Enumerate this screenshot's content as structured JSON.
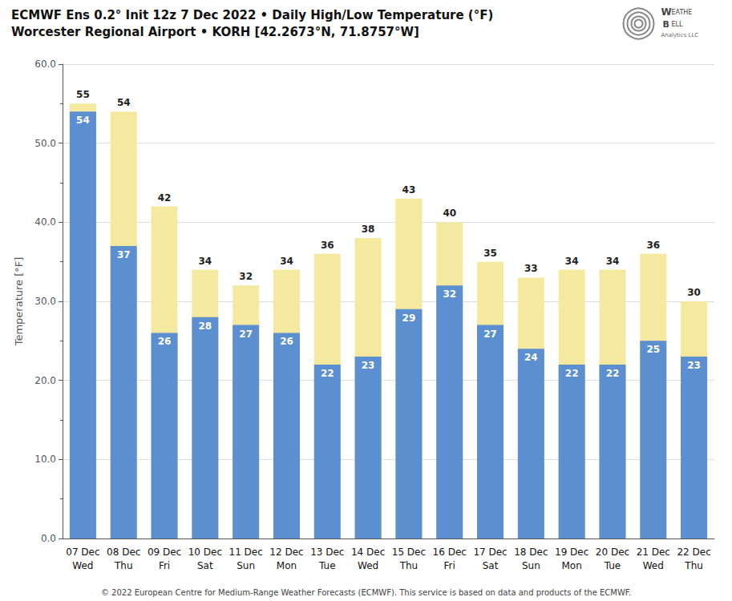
{
  "chart_data": {
    "type": "bar",
    "title": "ECMWF Ens 0.2° Init 12z 7 Dec 2022 • Daily High/Low Temperature (°F)",
    "subtitle": "Worcester Regional Airport • KORH [42.2673°N, 71.8757°W]",
    "categories": [
      "07 Dec\nWed",
      "08 Dec\nThu",
      "09 Dec\nFri",
      "10 Dec\nSat",
      "11 Dec\nSun",
      "12 Dec\nMon",
      "13 Dec\nTue",
      "14 Dec\nWed",
      "15 Dec\nThu",
      "16 Dec\nFri",
      "17 Dec\nSat",
      "18 Dec\nSun",
      "19 Dec\nMon",
      "20 Dec\nTue",
      "21 Dec\nWed",
      "22 Dec\nThu"
    ],
    "series": [
      {
        "color": "#5b8fcf",
        "values": [
          54,
          37,
          26,
          28,
          27,
          26,
          22,
          23,
          29,
          32,
          27,
          24,
          22,
          22,
          25,
          23
        ]
      },
      {
        "color": "#f5e9a0",
        "values": [
          55,
          54,
          42,
          34,
          32,
          34,
          36,
          38,
          43,
          40,
          35,
          33,
          34,
          34,
          36,
          30
        ]
      }
    ],
    "ylabel": "Temperature [°F]",
    "ylim": [
      0,
      60
    ],
    "yticks": [
      {
        "value": 0,
        "label": "0.0"
      },
      {
        "value": 10,
        "label": "10.0"
      },
      {
        "value": 20,
        "label": "20.0"
      },
      {
        "value": 30,
        "label": "30.0"
      },
      {
        "value": 40,
        "label": "40.0"
      },
      {
        "value": 50,
        "label": "50.0"
      },
      {
        "value": 60,
        "label": "60.0"
      }
    ],
    "grid": true,
    "data_labels": true,
    "annotations": [
      "© 2022 European Centre for Medium-Range Weather Forecasts (ECMWF). This service is based on data and products of the ECMWF.",
      "W",
      "EATHE",
      "B",
      "ELL",
      "Analytics LLC"
    ]
  }
}
